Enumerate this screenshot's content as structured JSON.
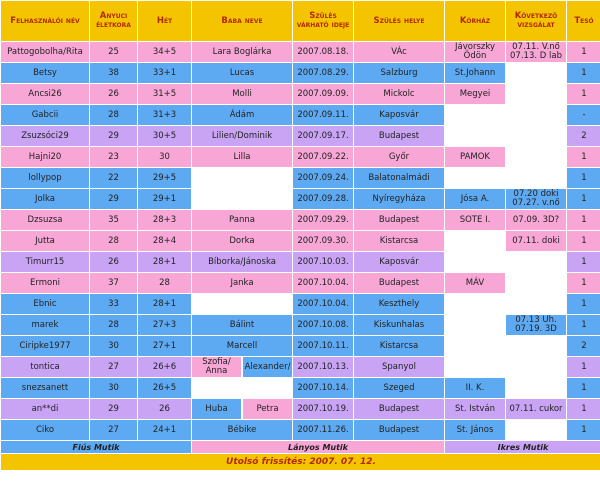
{
  "header": [
    "Felhasználói név",
    "Anyuci életkora",
    "Hét",
    "Baba neve",
    "Szülés várható ideje",
    "Szülés helye",
    "Kórház",
    "Következő vizsgálat",
    "Tesó"
  ],
  "colors": {
    "header": "#f5c400",
    "blue": "#5eaaf2",
    "pink": "#f7a6d6",
    "purple": "#c9a4f4"
  },
  "rows": [
    {
      "color": "pink",
      "cells": [
        "Pattogobolha/Rita",
        "25",
        "34+5",
        "Lara Boglárka",
        "2007.08.18.",
        "VÁc",
        "Jávorszky Ödön",
        "07.11. V.nő 07.13. D lab",
        "1"
      ]
    },
    {
      "color": "blue",
      "cells": [
        "Betsy",
        "38",
        "33+1",
        "Lucas",
        "2007.08.29.",
        "Salzburg",
        "St.Johann",
        null,
        "1"
      ]
    },
    {
      "color": "pink",
      "cells": [
        "Ancsi26",
        "26",
        "31+5",
        "Molli",
        "2007.09.09.",
        "Mickolc",
        "Megyei",
        null,
        "1"
      ]
    },
    {
      "color": "blue",
      "cells": [
        "Gabcii",
        "28",
        "31+3",
        "Ádám",
        "2007.09.11.",
        "Kaposvár",
        null,
        null,
        "-"
      ]
    },
    {
      "color": "purple",
      "cells": [
        "Zsuzsóci29",
        "29",
        "30+5",
        "Lilien/Dominik",
        "2007.09.17.",
        "Budapest",
        null,
        null,
        "2"
      ]
    },
    {
      "color": "pink",
      "cells": [
        "Hajni20",
        "23",
        "30",
        "Lilla",
        "2007.09.22.",
        "Győr",
        "PAMOK",
        null,
        "1"
      ]
    },
    {
      "color": "blue",
      "cells": [
        "lollypop",
        "22",
        "29+5",
        null,
        "2007.09.24.",
        "Balatonalmádi",
        null,
        null,
        "1"
      ]
    },
    {
      "color": "blue",
      "cells": [
        "Jolka",
        "29",
        "29+1",
        null,
        "2007.09.28.",
        "Nyíregyháza",
        "Jósa A.",
        "07.20 doki 07.27. v.nő",
        "1"
      ]
    },
    {
      "color": "pink",
      "cells": [
        "Dzsuzsa",
        "35",
        "28+3",
        "Panna",
        "2007.09.29.",
        "Budapest",
        "SOTE I.",
        "07.09. 3D?",
        "1"
      ]
    },
    {
      "color": "pink",
      "cells": [
        "Jutta",
        "28",
        "28+4",
        "Dorka",
        "2007.09.30.",
        "Kistarcsa",
        null,
        "07.11. doki",
        "1"
      ]
    },
    {
      "color": "purple",
      "cells": [
        "Timurr15",
        "26",
        "28+1",
        "Bíborka/Jánoska",
        "2007.10.03.",
        "Kaposvár",
        null,
        null,
        "1"
      ]
    },
    {
      "color": "pink",
      "cells": [
        "Ermoni",
        "37",
        "28",
        "Janka",
        "2007.10.04.",
        "Budapest",
        "MÁV",
        null,
        "1"
      ]
    },
    {
      "color": "blue",
      "cells": [
        "Ebnic",
        "33",
        "28+1",
        null,
        "2007.10.04.",
        "Keszthely",
        null,
        null,
        "1"
      ]
    },
    {
      "color": "blue",
      "cells": [
        "marek",
        "28",
        "27+3",
        "Bálint",
        "2007.10.08.",
        "Kiskunhalas",
        null,
        "07.13 Uh. 07.19. 3D",
        "1"
      ]
    },
    {
      "color": "blue",
      "cells": [
        "Ciripke1977",
        "30",
        "27+1",
        "Marcell",
        "2007.10.11.",
        "Kistarcsa",
        null,
        null,
        "2"
      ]
    },
    {
      "color": "purple",
      "cells": [
        "tontica",
        "27",
        "26+6",
        [
          {
            "text": "Szofia/ Anna",
            "color": "pink"
          },
          {
            "text": "Alexander/",
            "color": "blue"
          }
        ],
        "2007.10.13.",
        "Spanyol",
        null,
        null,
        "1"
      ]
    },
    {
      "color": "blue",
      "cells": [
        "snezsanett",
        "30",
        "26+5",
        null,
        "2007.10.14.",
        "Szeged",
        "II. K.",
        null,
        "1"
      ]
    },
    {
      "color": "purple",
      "cells": [
        "an**di",
        "29",
        "26",
        [
          {
            "text": "Huba",
            "color": "blue"
          },
          {
            "text": "Petra",
            "color": "pink"
          }
        ],
        "2007.10.19.",
        "Budapest",
        "St. István",
        "07.11. cukor",
        "1"
      ]
    },
    {
      "color": "blue",
      "cells": [
        "Ciko",
        "27",
        "24+1",
        "Bébike",
        "2007.11.26.",
        "Budapest",
        "St. János",
        null,
        "1"
      ]
    }
  ],
  "legend": [
    {
      "text": "Fiús Mutik",
      "color": "blue"
    },
    {
      "text": "Lányos Mutik",
      "color": "pink"
    },
    {
      "text": "Ikres Mutik",
      "color": "purple"
    }
  ],
  "footer": "Utolsó frissítés: 2007. 07. 12."
}
